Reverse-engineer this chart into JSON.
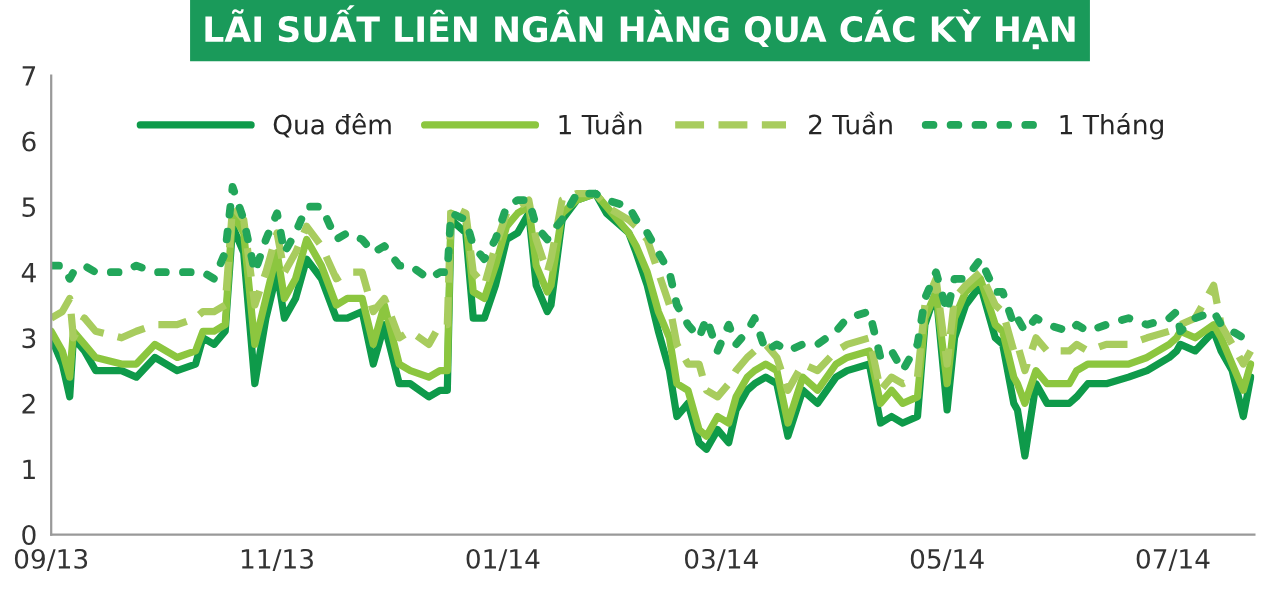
{
  "chart_data": {
    "type": "line",
    "title": "LÃI SUẤT LIÊN NGÂN HÀNG QUA CÁC KỲ HẠN",
    "x": [
      "2013-09-01",
      "2013-09-04",
      "2013-09-06",
      "2013-09-07",
      "2013-09-10",
      "2013-09-13",
      "2013-09-20",
      "2013-09-24",
      "2013-09-29",
      "2013-10-05",
      "2013-10-10",
      "2013-10-12",
      "2013-10-15",
      "2013-10-18",
      "2013-10-20",
      "2013-10-23",
      "2013-10-26",
      "2013-10-29",
      "2013-11-01",
      "2013-11-03",
      "2013-11-06",
      "2013-11-09",
      "2013-11-13",
      "2013-11-17",
      "2013-11-20",
      "2013-11-24",
      "2013-11-27",
      "2013-11-30",
      "2013-12-04",
      "2013-12-07",
      "2013-12-12",
      "2013-12-15",
      "2013-12-17",
      "2013-12-18",
      "2013-12-22",
      "2013-12-24",
      "2013-12-27",
      "2013-12-30",
      "2014-01-02",
      "2014-01-05",
      "2014-01-08",
      "2014-01-10",
      "2014-01-13",
      "2014-01-14",
      "2014-01-17",
      "2014-01-21",
      "2014-01-26",
      "2014-01-29",
      "2014-02-04",
      "2014-02-06",
      "2014-02-09",
      "2014-02-12",
      "2014-02-15",
      "2014-02-17",
      "2014-02-20",
      "2014-02-23",
      "2014-02-25",
      "2014-02-28",
      "2014-03-03",
      "2014-03-05",
      "2014-03-08",
      "2014-03-10",
      "2014-03-13",
      "2014-03-16",
      "2014-03-19",
      "2014-03-23",
      "2014-03-27",
      "2014-04-01",
      "2014-04-04",
      "2014-04-10",
      "2014-04-13",
      "2014-04-16",
      "2014-04-19",
      "2014-04-23",
      "2014-04-25",
      "2014-04-28",
      "2014-05-01",
      "2014-05-03",
      "2014-05-06",
      "2014-05-10",
      "2014-05-14",
      "2014-05-16",
      "2014-05-19",
      "2014-05-20",
      "2014-05-22",
      "2014-05-25",
      "2014-05-28",
      "2014-06-03",
      "2014-06-05",
      "2014-06-08",
      "2014-06-13",
      "2014-06-19",
      "2014-06-24",
      "2014-06-30",
      "2014-07-02",
      "2014-07-03",
      "2014-07-07",
      "2014-07-12",
      "2014-07-14",
      "2014-07-17",
      "2014-07-20",
      "2014-07-22"
    ],
    "series": [
      {
        "name": "Qua đêm",
        "color": "#0e9a4a",
        "line_style": "solid",
        "values": [
          3.0,
          2.6,
          2.1,
          3.0,
          2.8,
          2.5,
          2.5,
          2.4,
          2.7,
          2.5,
          2.6,
          3.0,
          2.9,
          3.1,
          4.7,
          4.3,
          2.3,
          3.3,
          4.0,
          3.3,
          3.6,
          4.2,
          3.9,
          3.3,
          3.3,
          3.4,
          2.6,
          3.2,
          2.3,
          2.3,
          2.1,
          2.2,
          2.2,
          4.8,
          4.6,
          3.3,
          3.3,
          3.8,
          4.5,
          4.6,
          4.9,
          3.8,
          3.4,
          3.5,
          4.8,
          5.1,
          5.2,
          4.9,
          4.6,
          4.3,
          3.8,
          3.1,
          2.5,
          1.8,
          2.0,
          1.4,
          1.3,
          1.6,
          1.4,
          1.9,
          2.2,
          2.3,
          2.4,
          2.3,
          1.5,
          2.2,
          2.0,
          2.4,
          2.5,
          2.6,
          1.7,
          1.8,
          1.7,
          1.8,
          3.2,
          3.7,
          1.9,
          3.0,
          3.5,
          3.8,
          3.0,
          2.9,
          2.0,
          1.9,
          1.2,
          2.3,
          2.0,
          2.0,
          2.1,
          2.3,
          2.3,
          2.4,
          2.5,
          2.7,
          2.8,
          2.9,
          2.8,
          3.1,
          2.8,
          2.5,
          1.8,
          2.4
        ]
      },
      {
        "name": "1 Tuần",
        "color": "#8cc63f",
        "line_style": "solid",
        "values": [
          3.1,
          2.8,
          2.4,
          3.1,
          2.9,
          2.7,
          2.6,
          2.6,
          2.9,
          2.7,
          2.8,
          3.1,
          3.1,
          3.2,
          4.9,
          4.6,
          2.9,
          3.6,
          4.3,
          3.6,
          3.9,
          4.5,
          4.1,
          3.5,
          3.6,
          3.6,
          2.9,
          3.5,
          2.6,
          2.5,
          2.4,
          2.5,
          2.5,
          4.9,
          4.8,
          3.7,
          3.6,
          4.1,
          4.7,
          4.9,
          5.0,
          4.1,
          3.7,
          3.8,
          4.9,
          5.1,
          5.2,
          5.0,
          4.6,
          4.4,
          4.0,
          3.4,
          3.0,
          2.3,
          2.2,
          1.6,
          1.5,
          1.8,
          1.7,
          2.1,
          2.4,
          2.5,
          2.6,
          2.5,
          1.7,
          2.4,
          2.2,
          2.6,
          2.7,
          2.8,
          2.0,
          2.2,
          2.0,
          2.1,
          3.3,
          3.7,
          2.3,
          3.3,
          3.7,
          3.9,
          3.2,
          3.1,
          2.4,
          2.3,
          2.0,
          2.5,
          2.3,
          2.3,
          2.5,
          2.6,
          2.6,
          2.6,
          2.7,
          2.9,
          3.0,
          3.1,
          3.0,
          3.2,
          3.0,
          2.6,
          2.2,
          2.6
        ]
      },
      {
        "name": "2 Tuần",
        "color": "#a8cc5e",
        "line_style": "dashed",
        "values": [
          3.3,
          3.4,
          3.6,
          3.0,
          3.3,
          3.1,
          3.0,
          3.1,
          3.2,
          3.2,
          3.3,
          3.4,
          3.4,
          3.5,
          5.0,
          4.8,
          3.5,
          4.0,
          4.6,
          4.0,
          4.3,
          4.7,
          4.4,
          3.9,
          4.0,
          4.0,
          3.4,
          3.6,
          3.0,
          3.1,
          2.9,
          3.2,
          3.2,
          5.0,
          4.9,
          4.0,
          3.8,
          4.4,
          4.9,
          5.0,
          5.1,
          4.5,
          4.0,
          4.2,
          5.1,
          5.2,
          5.2,
          5.0,
          4.8,
          4.7,
          4.5,
          4.0,
          3.5,
          2.9,
          2.6,
          2.6,
          2.2,
          2.1,
          2.3,
          2.5,
          2.7,
          2.8,
          2.9,
          2.7,
          2.2,
          2.6,
          2.5,
          2.8,
          2.9,
          3.0,
          2.2,
          2.4,
          2.3,
          2.4,
          3.5,
          3.9,
          2.6,
          3.6,
          3.8,
          4.0,
          3.5,
          3.4,
          2.8,
          2.9,
          2.5,
          3.0,
          2.8,
          2.8,
          2.9,
          2.8,
          2.9,
          2.9,
          3.0,
          3.1,
          3.2,
          3.2,
          3.3,
          3.8,
          3.2,
          2.9,
          2.6,
          2.8
        ]
      },
      {
        "name": "1 Tháng",
        "color": "#22a65a",
        "line_style": "dotted",
        "values": [
          4.1,
          4.1,
          3.9,
          4.0,
          4.1,
          4.0,
          4.0,
          4.1,
          4.0,
          4.0,
          4.0,
          4.0,
          3.9,
          4.3,
          5.3,
          4.8,
          4.0,
          4.5,
          4.9,
          4.3,
          4.6,
          5.0,
          5.0,
          4.5,
          4.6,
          4.5,
          4.3,
          4.4,
          4.1,
          4.1,
          3.9,
          4.0,
          4.0,
          4.9,
          4.8,
          4.4,
          4.2,
          4.5,
          5.0,
          5.1,
          5.1,
          4.7,
          4.5,
          4.6,
          4.8,
          5.2,
          5.2,
          5.1,
          5.0,
          4.8,
          4.6,
          4.3,
          4.0,
          3.5,
          3.2,
          3.0,
          3.3,
          2.8,
          3.2,
          2.9,
          3.1,
          3.3,
          2.8,
          2.9,
          2.8,
          2.9,
          2.9,
          3.1,
          3.3,
          3.4,
          2.7,
          2.8,
          2.5,
          2.9,
          3.6,
          4.0,
          3.4,
          3.9,
          3.9,
          4.2,
          3.7,
          3.7,
          3.2,
          3.3,
          3.1,
          3.3,
          3.2,
          3.1,
          3.2,
          3.1,
          3.2,
          3.3,
          3.2,
          3.3,
          3.4,
          3.1,
          3.3,
          3.4,
          3.2,
          3.1,
          3.0,
          2.9
        ]
      }
    ],
    "xlim": [
      "2013-09-01",
      "2014-07-23"
    ],
    "xticks": [
      {
        "value": "2013-09-01",
        "label": "09/13"
      },
      {
        "value": "2013-11-01",
        "label": "11/13"
      },
      {
        "value": "2014-01-01",
        "label": "01/14"
      },
      {
        "value": "2014-03-01",
        "label": "03/14"
      },
      {
        "value": "2014-05-01",
        "label": "05/14"
      },
      {
        "value": "2014-07-01",
        "label": "07/14"
      }
    ],
    "ylim": [
      0,
      7
    ],
    "yticks": [
      0,
      1,
      2,
      3,
      4,
      5,
      6,
      7
    ],
    "legend": "top",
    "grid": false,
    "marker": "none"
  }
}
